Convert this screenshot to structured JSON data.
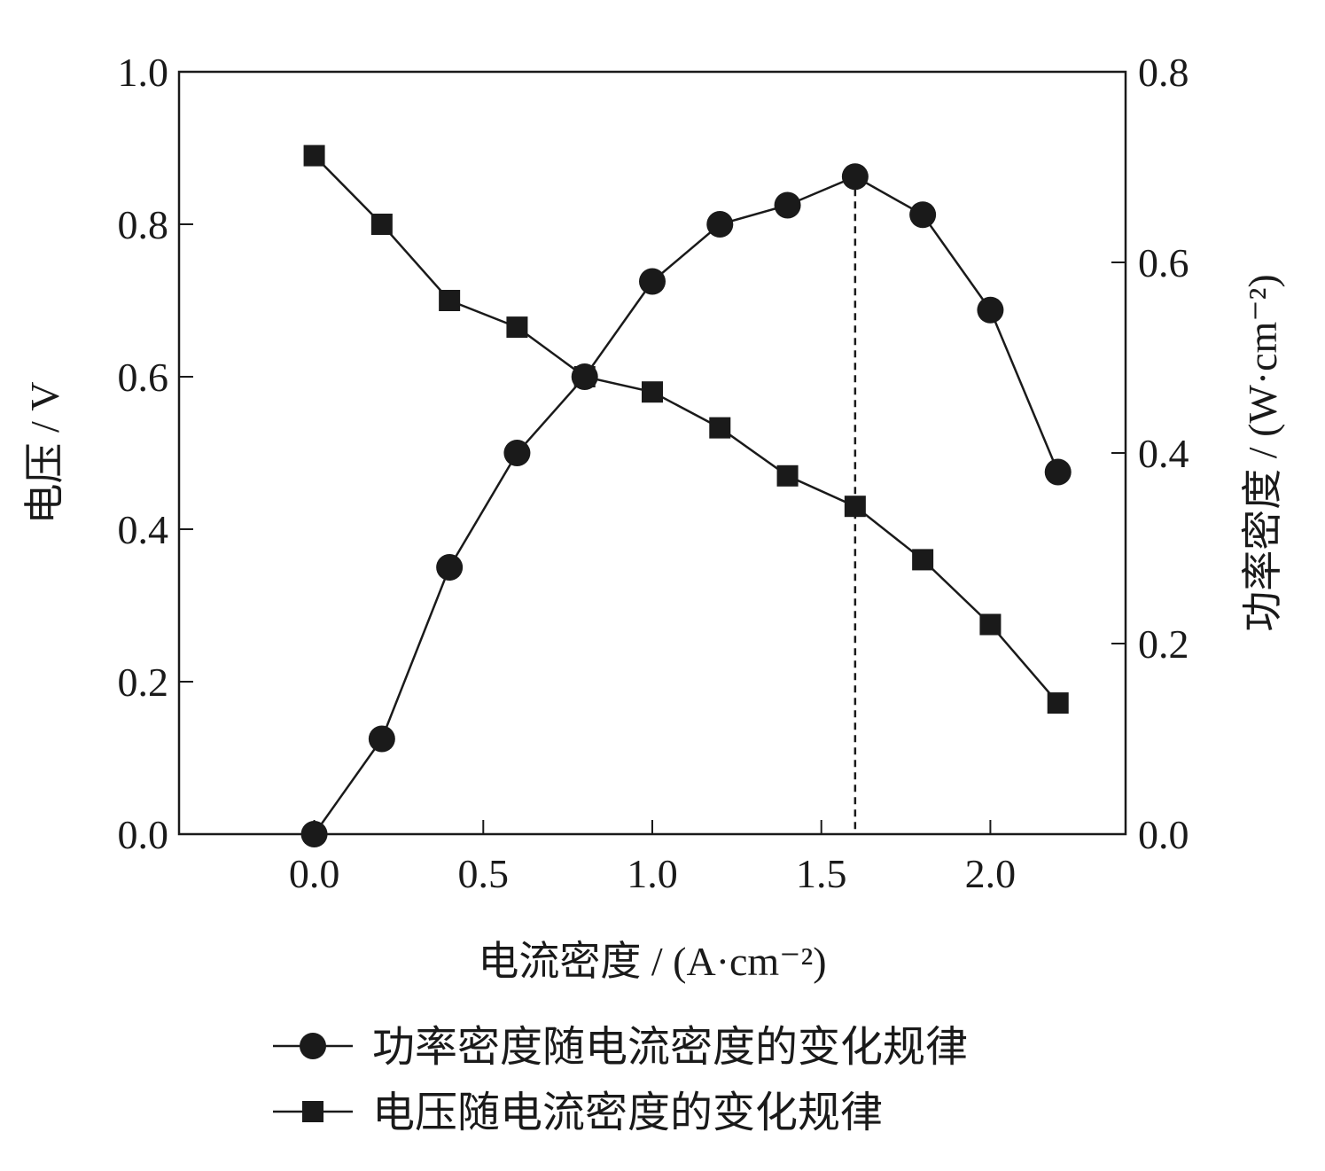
{
  "chart_data": {
    "type": "line",
    "title": "",
    "xlabel": "电流密度 / (A·cm⁻²)",
    "ylabel_left": "电压 / V",
    "ylabel_right": "功率密度 / (W·cm⁻²)",
    "xlim": [
      -0.4,
      2.4
    ],
    "ylim_left": [
      0,
      1.0
    ],
    "ylim_right": [
      0,
      0.8
    ],
    "xticks": [
      "0.0",
      "0.5",
      "1.0",
      "1.5",
      "2.0"
    ],
    "xtick_values": [
      0.0,
      0.5,
      1.0,
      1.5,
      2.0
    ],
    "yticks_left": [
      "0.0",
      "0.2",
      "0.4",
      "0.6",
      "0.8",
      "1.0"
    ],
    "ytick_values_left": [
      0.0,
      0.2,
      0.4,
      0.6,
      0.8,
      1.0
    ],
    "yticks_right": [
      "0.0",
      "0.2",
      "0.4",
      "0.6",
      "0.8"
    ],
    "ytick_values_right": [
      0.0,
      0.2,
      0.4,
      0.6,
      0.8
    ],
    "grid": false,
    "legend_position": "bottom",
    "marker_line": {
      "x": 1.6,
      "style": "dashed"
    },
    "series": [
      {
        "name": "功率密度随电流密度的变化规律",
        "axis": "right",
        "marker": "circle",
        "color": "#1a1a1a",
        "x": [
          0.0,
          0.2,
          0.4,
          0.6,
          0.8,
          1.0,
          1.2,
          1.4,
          1.6,
          1.8,
          2.0,
          2.2
        ],
        "y": [
          0.0,
          0.1,
          0.28,
          0.4,
          0.48,
          0.58,
          0.64,
          0.66,
          0.69,
          0.65,
          0.55,
          0.38
        ]
      },
      {
        "name": "电压随电流密度的变化规律",
        "axis": "left",
        "marker": "square",
        "color": "#1a1a1a",
        "x": [
          0.0,
          0.2,
          0.4,
          0.6,
          0.8,
          1.0,
          1.2,
          1.4,
          1.6,
          1.8,
          2.0,
          2.2
        ],
        "y": [
          0.89,
          0.8,
          0.7,
          0.665,
          0.6,
          0.58,
          0.533,
          0.47,
          0.43,
          0.36,
          0.275,
          0.172
        ]
      }
    ]
  }
}
